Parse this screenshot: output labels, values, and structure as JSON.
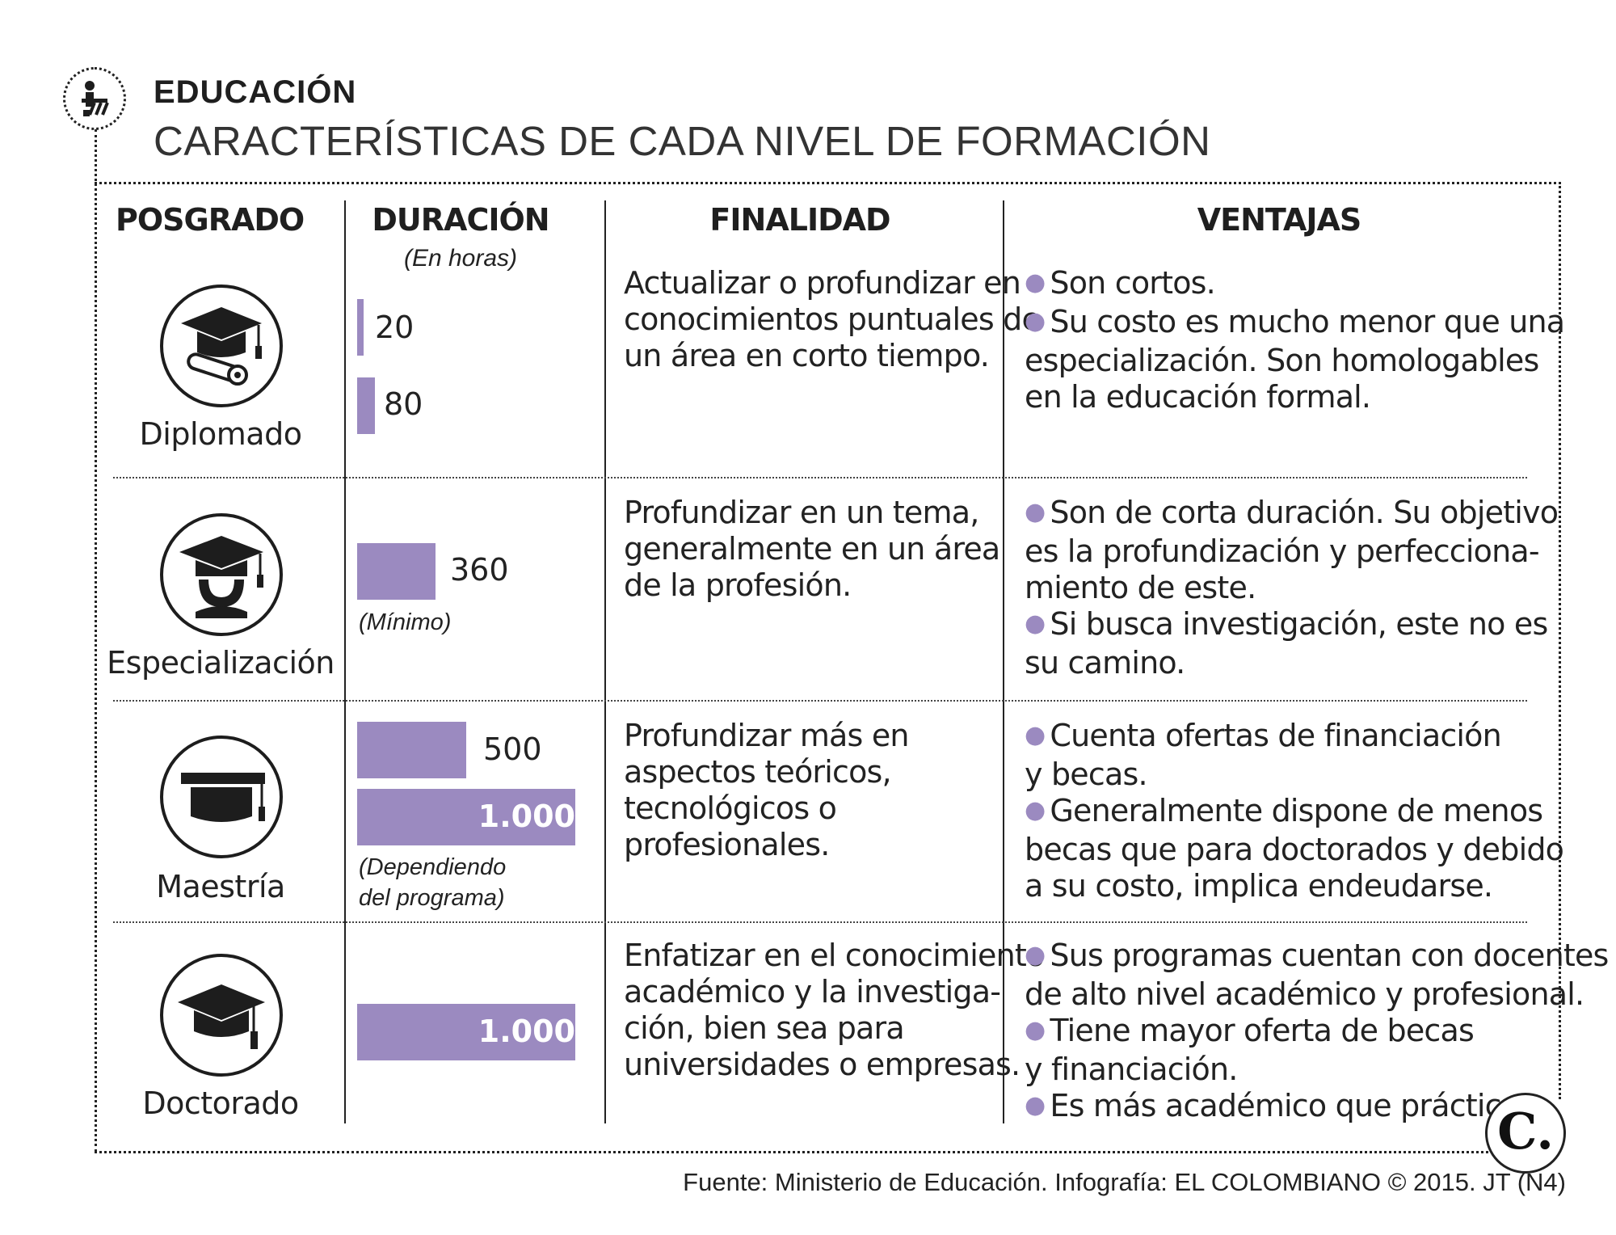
{
  "header": {
    "section": "EDUCACIÓN",
    "title": "CARACTERÍSTICAS DE CADA NIVEL DE FORMACIÓN",
    "icon": "education-icon"
  },
  "columns": {
    "level": "POSGRADO",
    "duration": "DURACIÓN",
    "duration_unit": "(En horas)",
    "purpose": "FINALIDAD",
    "advantages": "VENTAJAS"
  },
  "rows": [
    {
      "name": "Diplomado",
      "icon": "graduation-cap-diploma-icon",
      "bars": [
        {
          "value": 20,
          "label": "20"
        },
        {
          "value": 80,
          "label": "80"
        }
      ],
      "note": "",
      "purpose": [
        "Actualizar o profundizar en",
        "conocimientos puntuales de",
        "un área en corto tiempo."
      ],
      "advantages": [
        {
          "bullet": true,
          "text": "Son cortos."
        },
        {
          "bullet": true,
          "text": "Su costo es mucho menor que una"
        },
        {
          "bullet": false,
          "text": "especialización. Son homologables"
        },
        {
          "bullet": false,
          "text": "en la educación formal."
        }
      ]
    },
    {
      "name": "Especialización",
      "icon": "graduate-person-icon",
      "bars": [
        {
          "value": 360,
          "label": "360"
        }
      ],
      "note": "(Mínimo)",
      "purpose": [
        "Profundizar en un tema,",
        "generalmente en un área",
        "de la profesión."
      ],
      "advantages": [
        {
          "bullet": true,
          "text": "Son de corta duración. Su objetivo"
        },
        {
          "bullet": false,
          "text": "es la profundización y perfecciona-"
        },
        {
          "bullet": false,
          "text": "miento de este."
        },
        {
          "bullet": true,
          "text": "Si busca investigación, este no es"
        },
        {
          "bullet": false,
          "text": "su camino."
        }
      ]
    },
    {
      "name": "Maestría",
      "icon": "graduation-cap-icon",
      "bars": [
        {
          "value": 500,
          "label": "500"
        },
        {
          "value": 1000,
          "label": "1.000"
        }
      ],
      "note": "(Dependiendo del programa)",
      "note_lines": [
        "(Dependiendo",
        "del programa)"
      ],
      "purpose": [
        "Profundizar más en",
        "aspectos teóricos,",
        "tecnológicos o",
        "profesionales."
      ],
      "advantages": [
        {
          "bullet": true,
          "text": "Cuenta ofertas de financiación"
        },
        {
          "bullet": false,
          "text": "y becas."
        },
        {
          "bullet": true,
          "text": "Generalmente dispone de menos"
        },
        {
          "bullet": false,
          "text": "becas que para doctorados y debido"
        },
        {
          "bullet": false,
          "text": "a su costo, implica endeudarse."
        }
      ]
    },
    {
      "name": "Doctorado",
      "icon": "mortarboard-icon",
      "bars": [
        {
          "value": 1000,
          "label": "1.000"
        }
      ],
      "note": "",
      "purpose": [
        "Enfatizar en el conocimiento",
        "académico y la investiga-",
        "ción, bien sea para",
        "universidades o empresas."
      ],
      "advantages": [
        {
          "bullet": true,
          "text": "Sus programas cuentan con docentes"
        },
        {
          "bullet": false,
          "text": "de alto nivel académico y profesional."
        },
        {
          "bullet": true,
          "text": "Tiene mayor oferta de becas"
        },
        {
          "bullet": false,
          "text": "y financiación."
        },
        {
          "bullet": true,
          "text": "Es más académico que práctico."
        }
      ]
    }
  ],
  "colors": {
    "bar": "#9b8ac0",
    "bullet": "#9b8ac0"
  },
  "footer": "Fuente: Ministerio de Educación. Infografía: EL COLOMBIANO © 2015. JT (N4)",
  "brand": {
    "letter": "C.",
    "icon": "el-colombiano-logo"
  }
}
